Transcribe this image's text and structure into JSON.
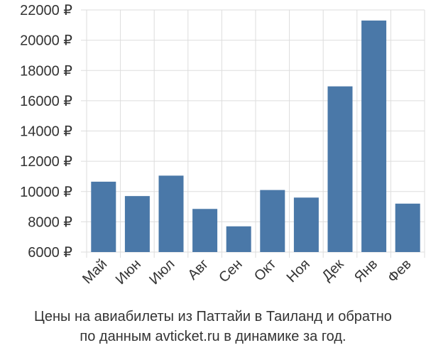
{
  "chart_data": {
    "type": "bar",
    "categories": [
      "Май",
      "Июн",
      "Июл",
      "Авг",
      "Сен",
      "Окт",
      "Ноя",
      "Дек",
      "Янв",
      "Фев"
    ],
    "values": [
      10650,
      9700,
      11050,
      8850,
      7700,
      10100,
      9600,
      16950,
      21300,
      9200
    ],
    "ylim": [
      6000,
      22000
    ],
    "yticks": [
      6000,
      8000,
      10000,
      12000,
      14000,
      16000,
      18000,
      20000,
      22000
    ],
    "ytick_labels": [
      "6000 ₽",
      "8000 ₽",
      "10000 ₽",
      "12000 ₽",
      "14000 ₽",
      "16000 ₽",
      "18000 ₽",
      "20000 ₽",
      "22000 ₽"
    ],
    "grid": true,
    "bar_color": "#4a78a8",
    "xlabel": "",
    "ylabel": ""
  },
  "caption": {
    "line1": "Цены на авиабилеты из Паттайи в Таиланд и обратно",
    "line2": "по данным avticket.ru в динамике за год."
  }
}
